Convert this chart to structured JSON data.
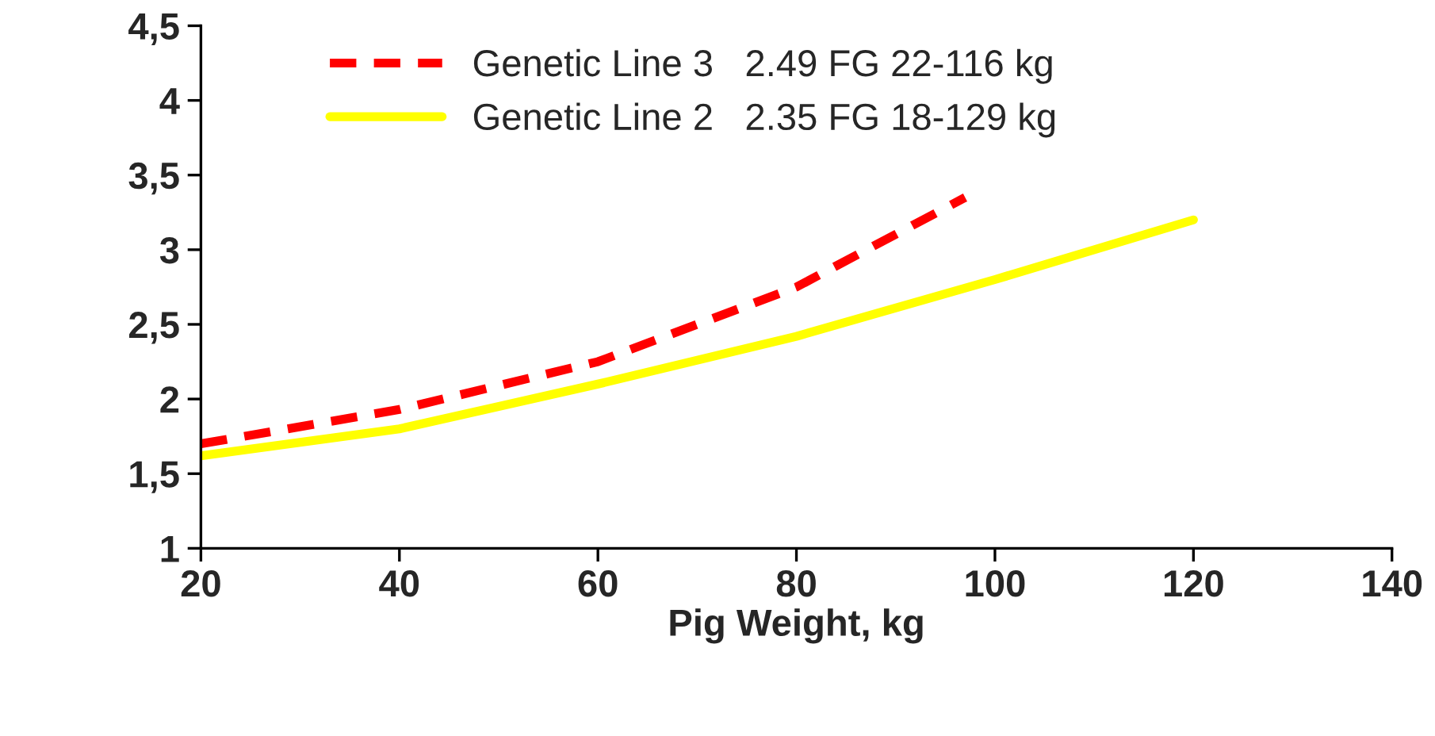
{
  "chart_data": {
    "type": "line",
    "xlabel": "Pig Weight, kg",
    "series": [
      {
        "name": "Genetic Line 3   2.49 FG 22-116 kg",
        "color": "#ff0000",
        "line_style": "dashed",
        "x": [
          20,
          40,
          60,
          80,
          97
        ],
        "values": [
          1.7,
          1.93,
          2.25,
          2.75,
          3.35
        ]
      },
      {
        "name": "Genetic Line 2   2.35 FG 18-129 kg",
        "color": "#ffff00",
        "line_style": "solid",
        "x": [
          20,
          40,
          60,
          80,
          100,
          120
        ],
        "values": [
          1.62,
          1.8,
          2.1,
          2.42,
          2.8,
          3.2
        ]
      }
    ],
    "xlim": [
      20,
      140
    ],
    "xticks": [
      20,
      40,
      60,
      80,
      100,
      120,
      140
    ],
    "ylim": [
      1,
      4.5
    ],
    "yticks": [
      {
        "value": 1,
        "label": "1"
      },
      {
        "value": 1.5,
        "label": "1,5"
      },
      {
        "value": 2,
        "label": "2"
      },
      {
        "value": 2.5,
        "label": "2,5"
      },
      {
        "value": 3,
        "label": "3"
      },
      {
        "value": 3.5,
        "label": "3,5"
      },
      {
        "value": 4,
        "label": "4"
      },
      {
        "value": 4.5,
        "label": "4,5"
      }
    ],
    "grid": false,
    "legend": "top left",
    "marker": "none"
  }
}
